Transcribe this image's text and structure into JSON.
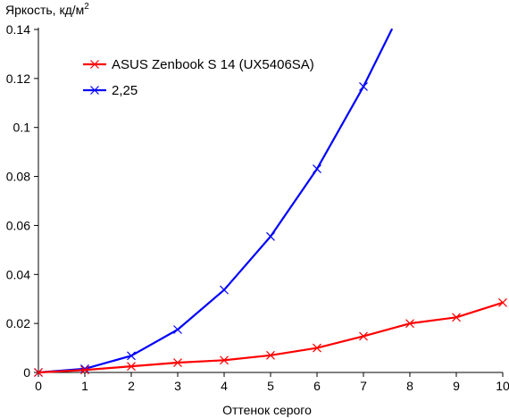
{
  "chart_data": {
    "type": "line",
    "title": "",
    "ylabel": "Яркость, кд/м",
    "ylabel_sup": "2",
    "xlabel": "Оттенок серого",
    "xlim": [
      0,
      10
    ],
    "ylim": [
      0,
      0.14
    ],
    "x_ticks": [
      0,
      1,
      2,
      3,
      4,
      5,
      6,
      7,
      8,
      9,
      10
    ],
    "x_tick_labels": [
      "0",
      "1",
      "2",
      "3",
      "4",
      "5",
      "6",
      "7",
      "8",
      "9",
      "10"
    ],
    "y_ticks": [
      0,
      0.02,
      0.04,
      0.06,
      0.08,
      0.1,
      0.12,
      0.14
    ],
    "y_tick_labels": [
      "0",
      "0.02",
      "0.04",
      "0.06",
      "0.08",
      "0.1",
      "0.12",
      "0.14"
    ],
    "grid": false,
    "legend_position": "top-left",
    "series": [
      {
        "name": "ASUS Zenbook S 14 (UX5406SA)",
        "color": "#ff0000",
        "marker": "x",
        "x": [
          0,
          1,
          2,
          3,
          4,
          5,
          6,
          7,
          8,
          9,
          10
        ],
        "y": [
          0,
          0.001,
          0.0025,
          0.004,
          0.005,
          0.007,
          0.01,
          0.0148,
          0.02,
          0.0225,
          0.0285
        ]
      },
      {
        "name": "2,25",
        "color": "#0000ff",
        "marker": "x",
        "x": [
          0,
          1,
          2,
          3,
          4,
          5,
          6,
          7,
          7.61
        ],
        "y": [
          0,
          0.0015,
          0.0068,
          0.0175,
          0.0337,
          0.0555,
          0.0831,
          0.1167,
          0.14
        ],
        "marker_points": 8
      }
    ]
  }
}
